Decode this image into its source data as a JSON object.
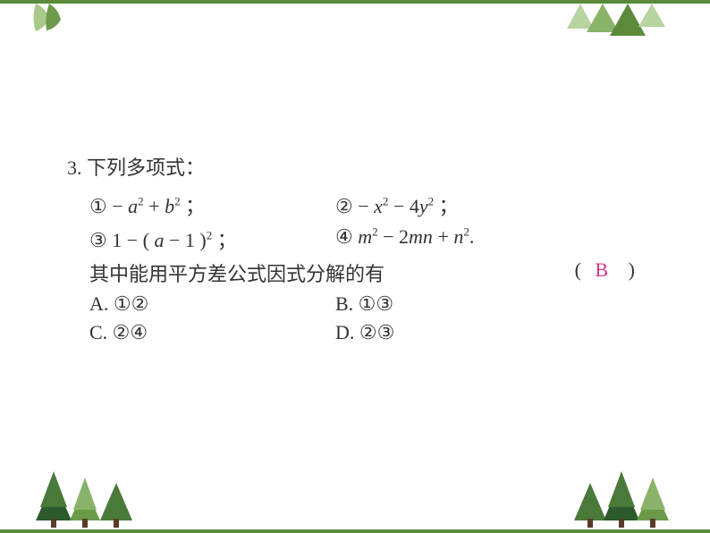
{
  "question": {
    "number": "3.",
    "stem": "下列多项式：",
    "items": {
      "item1": {
        "circled": "①",
        "expr_html": " − <span class='math'>a</span><span class='sup'>2</span> + <span class='math'>b</span><span class='sup'>2</span> ；"
      },
      "item2": {
        "circled": "②",
        "expr_html": " − <span class='math'>x</span><span class='sup'>2</span> − 4<span class='math'>y</span><span class='sup'>2</span> ；"
      },
      "item3": {
        "circled": "③",
        "expr_html": " 1 − ( <span class='math'>a</span> − 1 )<span class='sup'>2</span> ；"
      },
      "item4": {
        "circled": "④",
        "expr_html": " <span class='math'>m</span><span class='sup'>2</span> − 2<span class='math'>mn</span> + <span class='math'>n</span><span class='sup'>2</span>."
      }
    },
    "prompt": "其中能用平方差公式因式分解的有",
    "answer": "B",
    "choices": {
      "a": "A. ①②",
      "b": "B. ①③",
      "c": "C. ②④",
      "d": "D. ②③"
    }
  },
  "colors": {
    "border": "#5a8a3a",
    "leaf_light": "#a8c98a",
    "leaf_dark": "#6b9b4a",
    "tri_light": "#b8d4a0",
    "tri_mid": "#8ab36a",
    "tri_dark": "#5a8a3a",
    "tree_dark": "#2d5a2d",
    "tree_mid": "#4a7a3a",
    "tree_light": "#6b9b4a",
    "answer": "#d63384",
    "text": "#333333"
  }
}
